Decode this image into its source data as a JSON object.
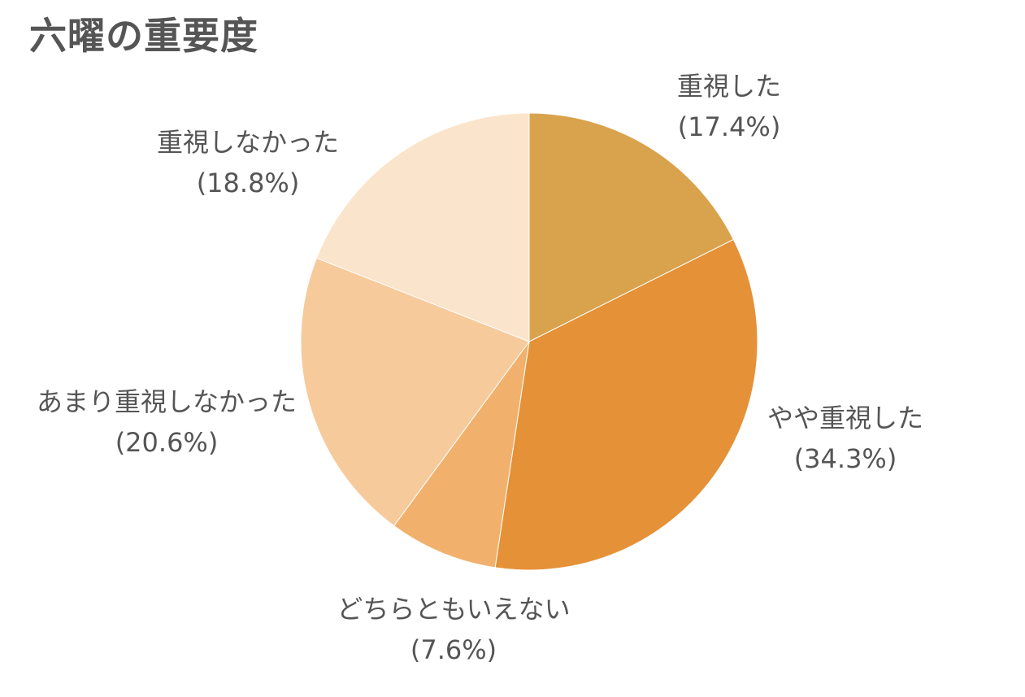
{
  "chart_data": {
    "type": "pie",
    "title": "六曜の重要度",
    "slices": [
      {
        "label": "重視した",
        "value": 17.4,
        "value_text": "(17.4%)",
        "color": "#d9a24c"
      },
      {
        "label": "やや重視した",
        "value": 34.3,
        "value_text": "(34.3%)",
        "color": "#e59138"
      },
      {
        "label": "どちらともいえない",
        "value": 7.6,
        "value_text": "(7.6%)",
        "color": "#f1b16c"
      },
      {
        "label": "あまり重視しなかった",
        "value": 20.6,
        "value_text": "(20.6%)",
        "color": "#f7ca9c"
      },
      {
        "label": "重視しなかった",
        "value": 18.8,
        "value_text": "(18.8%)",
        "color": "#fbe4cc"
      }
    ],
    "start_angle": "12 o'clock",
    "direction": "clockwise",
    "legend": "none"
  }
}
